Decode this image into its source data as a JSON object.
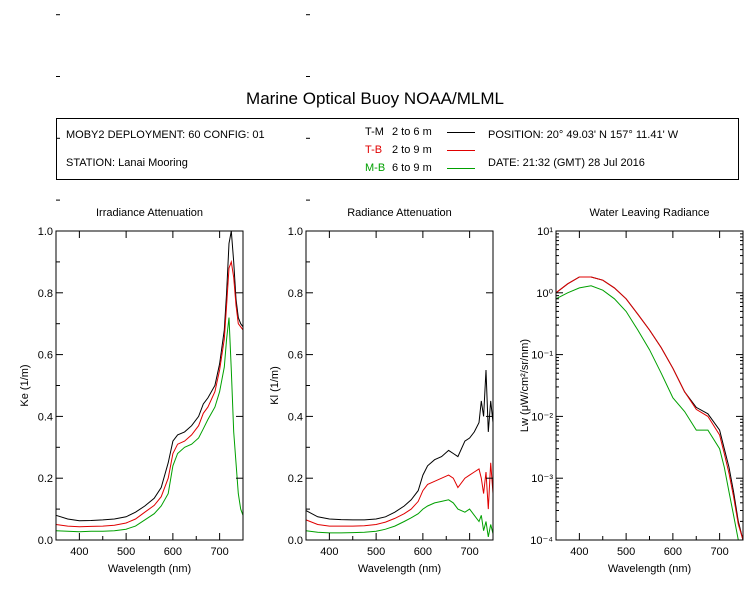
{
  "title": "Marine Optical Buoy NOAA/MLML",
  "info": {
    "deployment": "MOBY2 DEPLOYMENT: 60 CONFIG: 01",
    "station": "STATION: Lanai Mooring",
    "position": "POSITION: 20° 49.03' N   157° 11.41' W",
    "date": "DATE: 21:32 (GMT) 28 Jul 2016",
    "legend": [
      {
        "code": "T-M",
        "range": "2 to 6  m",
        "color": "#000000"
      },
      {
        "code": "T-B",
        "range": "2 to 9  m",
        "color": "#e00000"
      },
      {
        "code": "M-B",
        "range": "6 to 9  m",
        "color": "#00a000"
      }
    ]
  },
  "chart_data": [
    {
      "type": "line",
      "title": "Irradiance Attenuation",
      "xlabel": "Wavelength (nm)",
      "ylabel": "Ke  (1/m)",
      "xlim": [
        350,
        750
      ],
      "ylim": [
        0,
        1.0
      ],
      "xticks": [
        "400",
        "500",
        "600",
        "700"
      ],
      "yticks": [
        "0.0",
        "0.2",
        "0.4",
        "0.6",
        "0.8",
        "1.0"
      ],
      "x": [
        350,
        375,
        400,
        425,
        450,
        475,
        500,
        520,
        540,
        560,
        575,
        590,
        600,
        610,
        625,
        640,
        655,
        665,
        675,
        690,
        700,
        710,
        715,
        720,
        725,
        730,
        735,
        740,
        745,
        750
      ],
      "series": [
        {
          "name": "T-M",
          "color": "#000000",
          "values": [
            0.08,
            0.068,
            0.062,
            0.063,
            0.065,
            0.068,
            0.075,
            0.09,
            0.11,
            0.135,
            0.17,
            0.25,
            0.32,
            0.34,
            0.35,
            0.37,
            0.4,
            0.44,
            0.46,
            0.5,
            0.57,
            0.68,
            0.8,
            0.96,
            1.0,
            0.9,
            0.78,
            0.72,
            0.7,
            0.69
          ]
        },
        {
          "name": "T-B",
          "color": "#e00000",
          "values": [
            0.05,
            0.045,
            0.043,
            0.044,
            0.045,
            0.048,
            0.055,
            0.068,
            0.09,
            0.112,
            0.14,
            0.2,
            0.28,
            0.31,
            0.32,
            0.34,
            0.37,
            0.41,
            0.43,
            0.48,
            0.55,
            0.65,
            0.76,
            0.88,
            0.9,
            0.85,
            0.76,
            0.7,
            0.69,
            0.68
          ]
        },
        {
          "name": "M-B",
          "color": "#00a000",
          "values": [
            0.03,
            0.028,
            0.027,
            0.028,
            0.028,
            0.03,
            0.035,
            0.045,
            0.065,
            0.085,
            0.11,
            0.15,
            0.24,
            0.28,
            0.3,
            0.31,
            0.33,
            0.36,
            0.39,
            0.43,
            0.48,
            0.56,
            0.65,
            0.72,
            0.55,
            0.35,
            0.25,
            0.15,
            0.1,
            0.08
          ]
        }
      ]
    },
    {
      "type": "line",
      "title": "Radiance Attenuation",
      "xlabel": "Wavelength (nm)",
      "ylabel": "Kl  (1/m)",
      "xlim": [
        350,
        750
      ],
      "ylim": [
        0,
        1.0
      ],
      "xticks": [
        "400",
        "500",
        "600",
        "700"
      ],
      "yticks": [
        "0.0",
        "0.2",
        "0.4",
        "0.6",
        "0.8",
        "1.0"
      ],
      "x": [
        350,
        375,
        400,
        425,
        450,
        475,
        500,
        520,
        540,
        560,
        575,
        590,
        600,
        610,
        625,
        640,
        655,
        665,
        675,
        690,
        700,
        710,
        720,
        725,
        730,
        735,
        740,
        745,
        750
      ],
      "series": [
        {
          "name": "T-M",
          "color": "#000000",
          "values": [
            0.095,
            0.075,
            0.068,
            0.066,
            0.065,
            0.065,
            0.068,
            0.075,
            0.09,
            0.11,
            0.13,
            0.16,
            0.21,
            0.24,
            0.26,
            0.27,
            0.29,
            0.28,
            0.27,
            0.32,
            0.33,
            0.35,
            0.38,
            0.45,
            0.4,
            0.55,
            0.35,
            0.45,
            0.38
          ]
        },
        {
          "name": "T-B",
          "color": "#e00000",
          "values": [
            0.065,
            0.05,
            0.045,
            0.045,
            0.045,
            0.046,
            0.05,
            0.058,
            0.07,
            0.085,
            0.1,
            0.125,
            0.16,
            0.18,
            0.19,
            0.2,
            0.21,
            0.2,
            0.17,
            0.2,
            0.21,
            0.22,
            0.23,
            0.2,
            0.15,
            0.22,
            0.1,
            0.25,
            0.15
          ]
        },
        {
          "name": "M-B",
          "color": "#00a000",
          "values": [
            0.03,
            0.025,
            0.023,
            0.023,
            0.024,
            0.025,
            0.028,
            0.035,
            0.045,
            0.06,
            0.072,
            0.085,
            0.1,
            0.11,
            0.12,
            0.125,
            0.13,
            0.12,
            0.1,
            0.09,
            0.1,
            0.08,
            0.06,
            0.08,
            0.03,
            0.06,
            0.01,
            0.05,
            0.02
          ]
        }
      ]
    },
    {
      "type": "line",
      "title": "Water Leaving Radiance",
      "xlabel": "Wavelength (nm)",
      "ylabel": "Lw  (μW/cm²/sr/nm)",
      "xscale": "log-y",
      "xlim": [
        350,
        750
      ],
      "ylim": [
        0.0001,
        10
      ],
      "xticks": [
        "400",
        "500",
        "600",
        "700"
      ],
      "yticks": [
        "10⁻⁴",
        "10⁻³",
        "10⁻²",
        "10⁻¹",
        "10⁰",
        "10¹"
      ],
      "x": [
        350,
        375,
        400,
        425,
        450,
        475,
        500,
        525,
        550,
        575,
        600,
        625,
        650,
        675,
        700,
        710,
        720,
        730,
        740,
        750
      ],
      "series": [
        {
          "name": "T-M",
          "color": "#000000",
          "values": [
            1.0,
            1.4,
            1.8,
            1.8,
            1.6,
            1.2,
            0.8,
            0.45,
            0.25,
            0.13,
            0.06,
            0.025,
            0.014,
            0.011,
            0.006,
            0.003,
            0.0015,
            0.0006,
            0.0002,
            0.0001
          ]
        },
        {
          "name": "T-B",
          "color": "#e00000",
          "values": [
            1.0,
            1.4,
            1.8,
            1.8,
            1.6,
            1.2,
            0.8,
            0.45,
            0.25,
            0.13,
            0.06,
            0.025,
            0.013,
            0.01,
            0.005,
            0.0025,
            0.0012,
            0.0005,
            0.00018,
            0.0001
          ]
        },
        {
          "name": "M-B",
          "color": "#00a000",
          "values": [
            0.8,
            1.0,
            1.2,
            1.3,
            1.1,
            0.8,
            0.5,
            0.25,
            0.12,
            0.05,
            0.02,
            0.012,
            0.006,
            0.006,
            0.003,
            0.0015,
            0.0006,
            0.00025,
            0.0001,
            0.0001
          ]
        }
      ]
    }
  ]
}
